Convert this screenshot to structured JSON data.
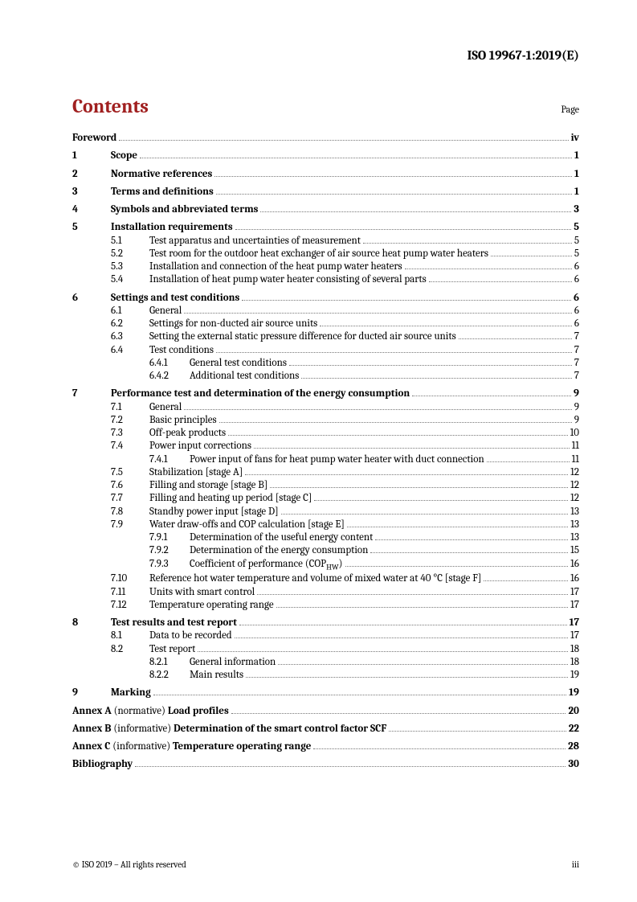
{
  "document_id": "ISO 19967-1:2019(E)",
  "contents_heading": "Contents",
  "page_label": "Page",
  "copyright": "© ISO 2019 – All rights reserved",
  "page_number": "iii",
  "colors": {
    "heading": "#a02020",
    "text": "#000000",
    "leader": "#777777"
  },
  "typography": {
    "heading_fontsize": 24,
    "body_fontsize": 13,
    "header_id_fontsize": 16,
    "footer_fontsize": 11
  },
  "toc": [
    {
      "level": 0,
      "bold": true,
      "num": "",
      "title": "Foreword",
      "page": "iv"
    },
    {
      "level": 1,
      "bold": true,
      "num": "1",
      "title": "Scope",
      "page": "1"
    },
    {
      "level": 1,
      "bold": true,
      "num": "2",
      "title": "Normative references",
      "page": "1"
    },
    {
      "level": 1,
      "bold": true,
      "num": "3",
      "title": "Terms and definitions",
      "page": "1"
    },
    {
      "level": 1,
      "bold": true,
      "num": "4",
      "title": "Symbols and abbreviated terms",
      "page": "3"
    },
    {
      "level": 1,
      "bold": true,
      "num": "5",
      "title": "Installation requirements",
      "page": "5"
    },
    {
      "level": 2,
      "num": "5.1",
      "title": "Test apparatus and uncertainties of measurement",
      "page": "5"
    },
    {
      "level": 2,
      "num": "5.2",
      "title": "Test room for the outdoor heat exchanger of air source heat pump water heaters",
      "page": "5"
    },
    {
      "level": 2,
      "num": "5.3",
      "title": "Installation and connection of the heat pump water heaters",
      "page": "6"
    },
    {
      "level": 2,
      "num": "5.4",
      "title": "Installation of heat pump water heater consisting of several parts",
      "page": "6"
    },
    {
      "level": 1,
      "bold": true,
      "num": "6",
      "title": "Settings and test conditions",
      "page": "6"
    },
    {
      "level": 2,
      "num": "6.1",
      "title": "General",
      "page": "6"
    },
    {
      "level": 2,
      "num": "6.2",
      "title": "Settings for non-ducted air source units",
      "page": "6"
    },
    {
      "level": 2,
      "num": "6.3",
      "title": "Setting the external static pressure difference for ducted air source units",
      "page": "7"
    },
    {
      "level": 2,
      "num": "6.4",
      "title": "Test conditions",
      "page": "7"
    },
    {
      "level": 3,
      "num": "6.4.1",
      "title": "General test conditions",
      "page": "7"
    },
    {
      "level": 3,
      "num": "6.4.2",
      "title": "Additional test conditions",
      "page": "7"
    },
    {
      "level": 1,
      "bold": true,
      "num": "7",
      "title": "Performance test and determination of the energy consumption",
      "page": "9"
    },
    {
      "level": 2,
      "num": "7.1",
      "title": "General",
      "page": "9"
    },
    {
      "level": 2,
      "num": "7.2",
      "title": "Basic principles",
      "page": "9"
    },
    {
      "level": 2,
      "num": "7.3",
      "title": "Off-peak products",
      "page": "10"
    },
    {
      "level": 2,
      "num": "7.4",
      "title": "Power input corrections",
      "page": "11"
    },
    {
      "level": 3,
      "num": "7.4.1",
      "title": "Power input of fans for heat pump water heater with duct connection",
      "page": "11"
    },
    {
      "level": 2,
      "num": "7.5",
      "title": "Stabilization [stage A]",
      "page": "12"
    },
    {
      "level": 2,
      "num": "7.6",
      "title": "Filling and storage [stage B]",
      "page": "12"
    },
    {
      "level": 2,
      "num": "7.7",
      "title": "Filling and heating up period [stage C]",
      "page": "12"
    },
    {
      "level": 2,
      "num": "7.8",
      "title": "Standby power input [stage D]",
      "page": "13"
    },
    {
      "level": 2,
      "num": "7.9",
      "title": "Water draw-offs and COP calculation [stage E]",
      "page": "13"
    },
    {
      "level": 3,
      "num": "7.9.1",
      "title": "Determination of the useful energy content",
      "page": "13"
    },
    {
      "level": 3,
      "num": "7.9.2",
      "title": "Determination of the energy consumption",
      "page": "15"
    },
    {
      "level": 3,
      "num": "7.9.3",
      "title_html": "Coefficient of performance (COP<sub>HW</sub>)",
      "page": "16"
    },
    {
      "level": 2,
      "num": "7.10",
      "title": "Reference hot water temperature and volume of mixed water at 40 °C [stage F]",
      "page": "16"
    },
    {
      "level": 2,
      "num": "7.11",
      "title": "Units with smart control",
      "page": "17"
    },
    {
      "level": 2,
      "num": "7.12",
      "title": "Temperature operating range",
      "page": "17"
    },
    {
      "level": 1,
      "bold": true,
      "num": "8",
      "title": "Test results and test report",
      "page": "17"
    },
    {
      "level": 2,
      "num": "8.1",
      "title": "Data to be recorded",
      "page": "17"
    },
    {
      "level": 2,
      "num": "8.2",
      "title": "Test report",
      "page": "18"
    },
    {
      "level": 3,
      "num": "8.2.1",
      "title": "General information",
      "page": "18"
    },
    {
      "level": 3,
      "num": "8.2.2",
      "title": "Main results",
      "page": "19"
    },
    {
      "level": 1,
      "bold": true,
      "num": "9",
      "title": "Marking",
      "page": "19"
    }
  ],
  "annexes": [
    {
      "prefix_bold": "Annex A",
      "prefix_normal": " (normative) ",
      "title_bold": "Load profiles",
      "page": "20"
    },
    {
      "prefix_bold": "Annex B",
      "prefix_normal": " (informative) ",
      "title_bold": "Determination of the smart control factor SCF",
      "page": "22"
    },
    {
      "prefix_bold": "Annex C",
      "prefix_normal": " (informative) ",
      "title_bold": "Temperature operating range",
      "page": "28"
    },
    {
      "prefix_bold": "Bibliography",
      "prefix_normal": "",
      "title_bold": "",
      "page": "30"
    }
  ]
}
